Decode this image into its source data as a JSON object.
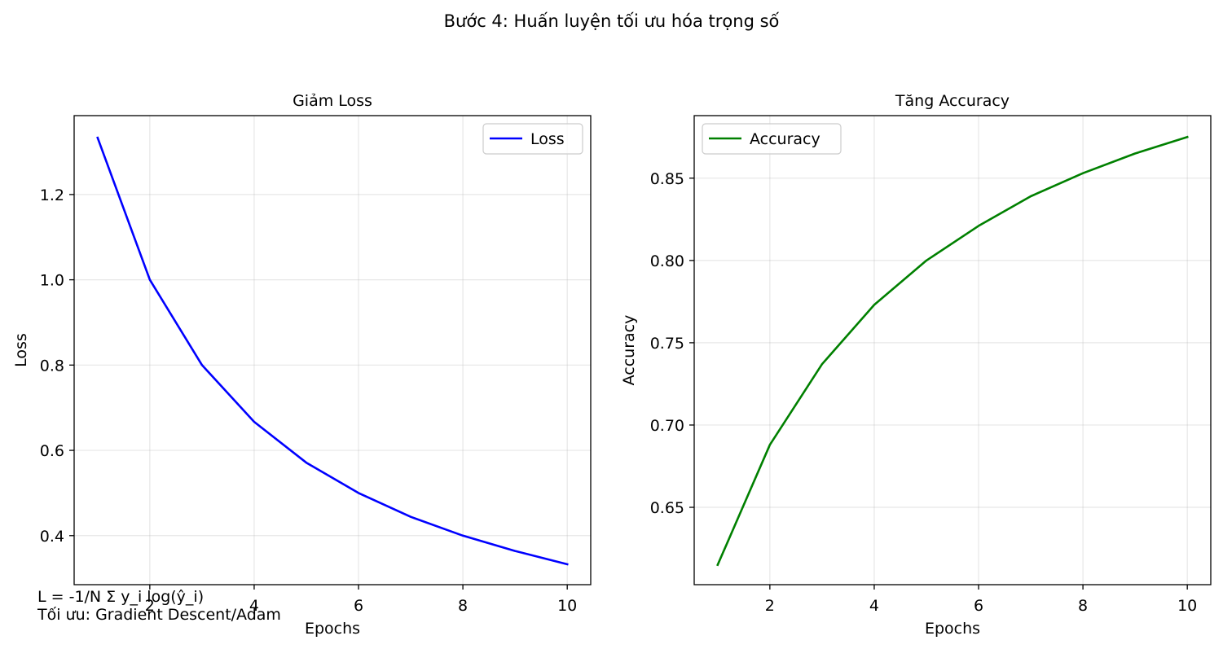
{
  "suptitle": "Bước 4: Huấn luyện tối ưu hóa trọng số",
  "note_lines": [
    "L = -1/N Σ y_i log(ŷ_i)",
    "Tối ưu: Gradient Descent/Adam"
  ],
  "chart_data": [
    {
      "type": "line",
      "title": "Giảm Loss",
      "xlabel": "Epochs",
      "ylabel": "Loss",
      "xlim": [
        0.55,
        10.45
      ],
      "ylim": [
        0.285,
        1.385
      ],
      "xticks": [
        2,
        4,
        6,
        8,
        10
      ],
      "yticks": [
        0.4,
        0.6,
        0.8,
        1.0,
        1.2
      ],
      "ytick_labels": [
        "0.4",
        "0.6",
        "0.8",
        "1.0",
        "1.2"
      ],
      "grid": true,
      "legend_position": "upper right",
      "series": [
        {
          "name": "Loss",
          "color": "#0000ff",
          "x": [
            1,
            2,
            3,
            4,
            5,
            6,
            7,
            8,
            9,
            10
          ],
          "y": [
            1.333,
            1.0,
            0.8,
            0.667,
            0.571,
            0.5,
            0.444,
            0.4,
            0.364,
            0.333
          ]
        }
      ]
    },
    {
      "type": "line",
      "title": "Tăng Accuracy",
      "xlabel": "Epochs",
      "ylabel": "Accuracy",
      "xlim": [
        0.55,
        10.45
      ],
      "ylim": [
        0.603,
        0.888
      ],
      "xticks": [
        2,
        4,
        6,
        8,
        10
      ],
      "yticks": [
        0.65,
        0.7,
        0.75,
        0.8,
        0.85
      ],
      "ytick_labels": [
        "0.65",
        "0.70",
        "0.75",
        "0.80",
        "0.85"
      ],
      "grid": true,
      "legend_position": "upper left",
      "series": [
        {
          "name": "Accuracy",
          "color": "#008000",
          "x": [
            1,
            2,
            3,
            4,
            5,
            6,
            7,
            8,
            9,
            10
          ],
          "y": [
            0.615,
            0.688,
            0.737,
            0.773,
            0.8,
            0.821,
            0.839,
            0.853,
            0.865,
            0.875
          ]
        }
      ]
    }
  ]
}
